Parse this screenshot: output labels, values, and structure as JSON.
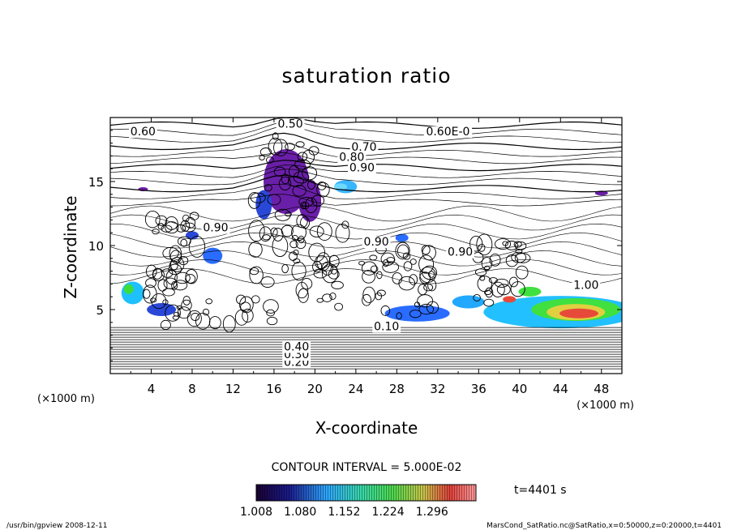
{
  "chart_data": {
    "type": "contour",
    "title": "saturation ratio",
    "xlabel": "X-coordinate",
    "ylabel": "Z-coordinate",
    "x_unit": "(×1000 m)",
    "y_unit": "(×1000 m)",
    "xlim": [
      0,
      50
    ],
    "ylim": [
      0,
      20
    ],
    "x_ticks": [
      4,
      8,
      12,
      16,
      20,
      24,
      28,
      32,
      36,
      40,
      44,
      48
    ],
    "y_ticks": [
      5,
      10,
      15
    ],
    "contour_labels": [
      {
        "text": "0.50",
        "x": 17.6,
        "z": 19.2
      },
      {
        "text": "0.60",
        "x": 3.2,
        "z": 18.6
      },
      {
        "text": "0.60E-0",
        "x": 33.0,
        "z": 18.6
      },
      {
        "text": "0.70",
        "x": 24.8,
        "z": 17.4
      },
      {
        "text": "0.80",
        "x": 23.6,
        "z": 16.6
      },
      {
        "text": "0.90",
        "x": 24.6,
        "z": 15.8
      },
      {
        "text": "0.90",
        "x": 10.3,
        "z": 11.1
      },
      {
        "text": "0.90",
        "x": 26.0,
        "z": 10.0
      },
      {
        "text": "0.90",
        "x": 34.2,
        "z": 9.2
      },
      {
        "text": "1.00",
        "x": 46.5,
        "z": 6.6
      },
      {
        "text": "0.10",
        "x": 27.0,
        "z": 3.4
      },
      {
        "text": "0.20",
        "x": 18.2,
        "z": 0.6
      },
      {
        "text": "0.30",
        "x": 18.2,
        "z": 1.2
      },
      {
        "text": "0.40",
        "x": 18.2,
        "z": 1.8
      }
    ],
    "contour_interval": "CONTOUR INTERVAL = 5.000E-02",
    "colorbar": {
      "min": 1.008,
      "max": 1.368,
      "tick_labels": [
        "1.008",
        "1.080",
        "1.152",
        "1.224",
        "1.296"
      ]
    },
    "time_label": "t=4401 s",
    "footer_left": "/usr/bin/gpview  2008-12-11",
    "footer_right": "MarsCond_SatRatio.nc@SatRatio,x=0:50000,z=0:20000,t=4401"
  }
}
